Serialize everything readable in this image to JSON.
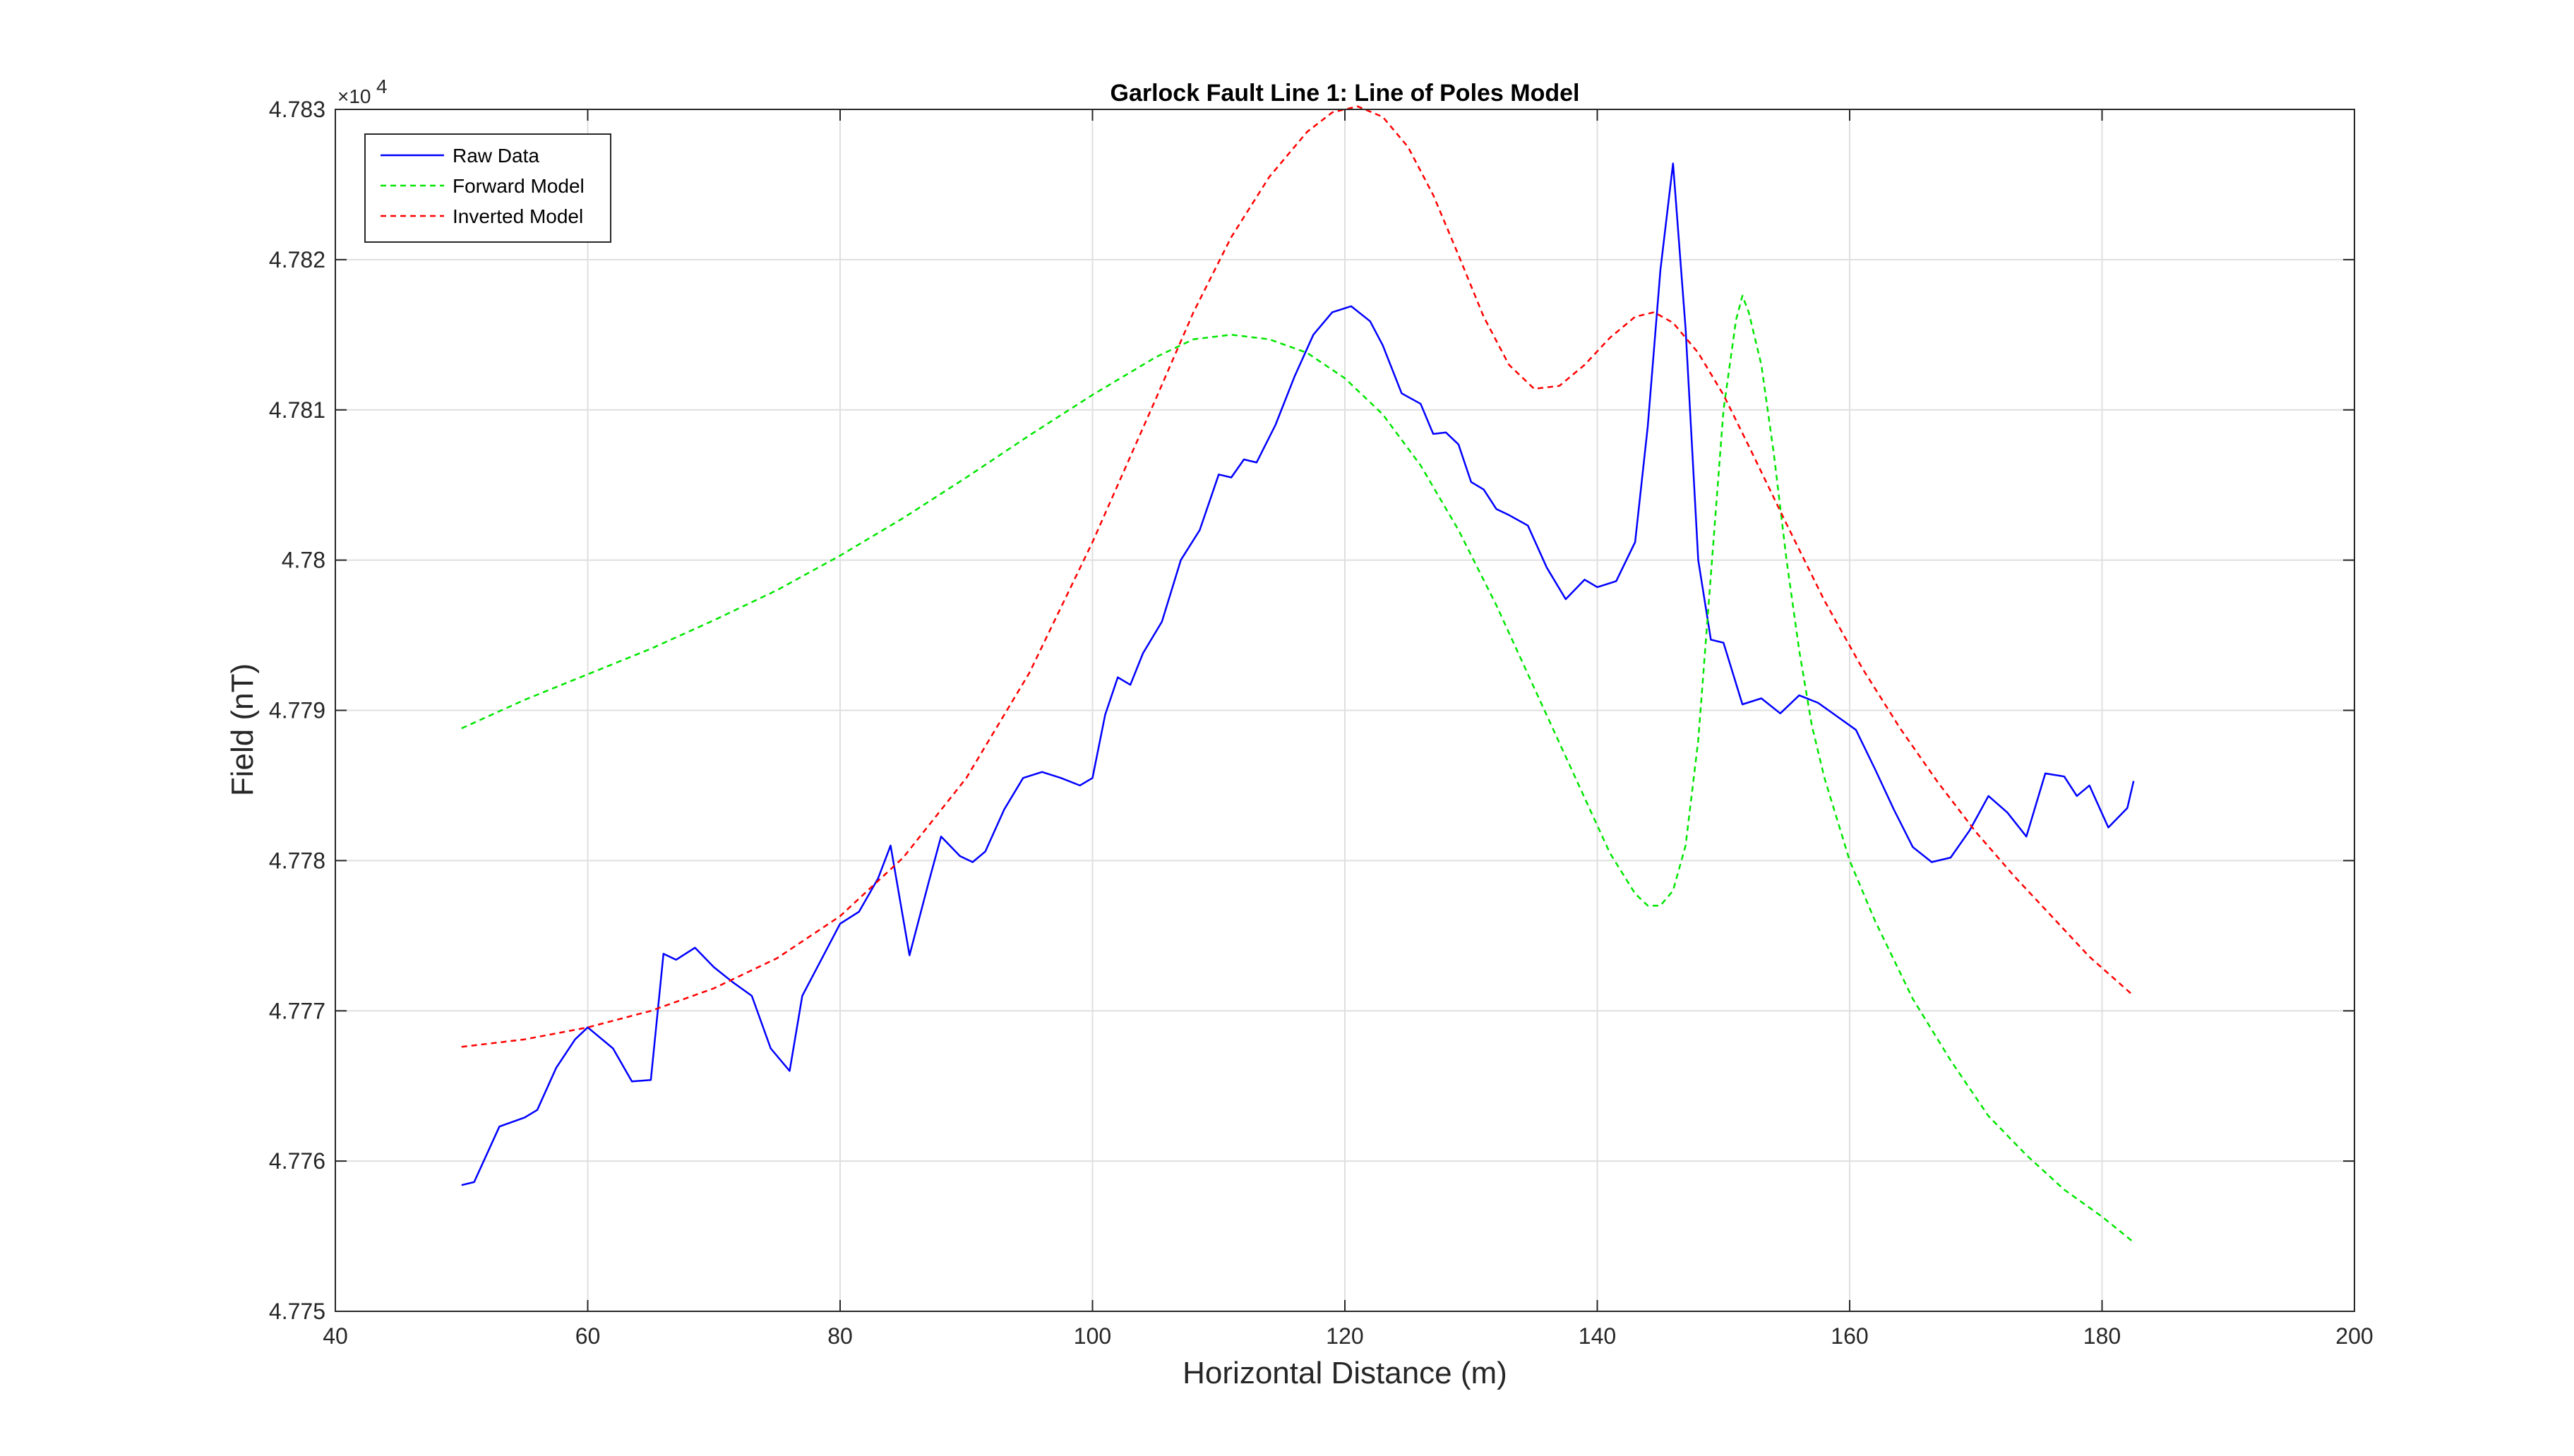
{
  "chart_data": {
    "type": "line",
    "title": "Garlock Fault Line 1: Line of Poles Model",
    "xlabel": "Horizontal Distance (m)",
    "ylabel": "Field (nT)",
    "xlim": [
      40,
      200
    ],
    "ylim": [
      47750,
      47830
    ],
    "y_exponent_label": "×10",
    "y_exponent_power": "4",
    "xticks": [
      40,
      60,
      80,
      100,
      120,
      140,
      160,
      180,
      200
    ],
    "xtick_labels": [
      "40",
      "60",
      "80",
      "100",
      "120",
      "140",
      "160",
      "180",
      "200"
    ],
    "yticks": [
      47750,
      47760,
      47770,
      47780,
      47790,
      47800,
      47810,
      47820,
      47830
    ],
    "ytick_labels": [
      "4.775",
      "4.776",
      "4.777",
      "4.778",
      "4.779",
      "4.78",
      "4.781",
      "4.782",
      "4.783"
    ],
    "grid": true,
    "legend_position": "top-left",
    "series": [
      {
        "name": "Raw Data",
        "color": "#0000ff",
        "dash": "solid",
        "x": [
          50,
          51,
          53,
          55,
          56,
          57.5,
          59,
          60,
          62,
          63.5,
          65,
          66,
          67,
          68.5,
          70,
          71.5,
          73,
          74.5,
          76,
          77,
          78.5,
          80,
          81.5,
          83,
          84,
          85.5,
          87,
          88,
          89.5,
          90.5,
          91.5,
          93,
          94.5,
          96,
          97.5,
          99,
          100,
          101,
          102,
          103,
          104,
          105.5,
          107,
          108.5,
          110,
          111,
          112,
          113,
          114.5,
          116,
          117.5,
          119,
          120.5,
          122,
          123,
          124.5,
          126,
          127,
          128,
          129,
          130,
          131,
          132,
          133,
          134.5,
          136,
          137.5,
          139,
          140,
          141.5,
          143,
          144,
          145,
          146,
          147,
          148,
          149,
          150,
          151.5,
          153,
          154.5,
          156,
          157.5,
          159,
          160.5,
          162,
          163.5,
          165,
          166.5,
          168,
          169.5,
          171,
          172.5,
          174,
          175.5,
          177,
          178,
          179,
          180.5,
          182,
          182.5
        ],
        "y": [
          47758.4,
          47758.6,
          47762.3,
          47762.9,
          47763.4,
          47766.2,
          47768.1,
          47768.9,
          47767.5,
          47765.3,
          47765.4,
          47773.8,
          47773.4,
          47774.2,
          47772.9,
          47771.9,
          47771.0,
          47767.5,
          47766.0,
          47771.0,
          47773.4,
          47775.8,
          47776.6,
          47778.8,
          47781.0,
          47773.7,
          47778.5,
          47781.6,
          47780.3,
          47779.9,
          47780.6,
          47783.4,
          47785.5,
          47785.9,
          47785.5,
          47785.0,
          47785.5,
          47789.7,
          47792.2,
          47791.7,
          47793.8,
          47795.9,
          47800.0,
          47802.0,
          47805.7,
          47805.5,
          47806.7,
          47806.5,
          47809.0,
          47812.2,
          47815.0,
          47816.5,
          47816.9,
          47815.9,
          47814.3,
          47811.1,
          47810.4,
          47808.4,
          47808.5,
          47807.7,
          47805.2,
          47804.7,
          47803.4,
          47803.0,
          47802.3,
          47799.5,
          47797.4,
          47798.7,
          47798.2,
          47798.6,
          47801.2,
          47808.9,
          47819.3,
          47826.4,
          47815.4,
          47800.0,
          47794.7,
          47794.5,
          47790.4,
          47790.8,
          47789.8,
          47791.0,
          47790.5,
          47789.6,
          47788.7,
          47786.1,
          47783.4,
          47780.9,
          47779.9,
          47780.2,
          47782.0,
          47784.3,
          47783.2,
          47781.6,
          47785.8,
          47785.6,
          47784.3,
          47785.0,
          47782.2,
          47783.5,
          47785.3
        ]
      },
      {
        "name": "Forward Model",
        "color": "#00e600",
        "dash": "8,6",
        "x": [
          50,
          55,
          60,
          65,
          70,
          75,
          80,
          85,
          90,
          95,
          100,
          105,
          108,
          111,
          114,
          117,
          120,
          123,
          126,
          129,
          132,
          135,
          138,
          141,
          143,
          144,
          145,
          146,
          147,
          148,
          149,
          150,
          151,
          151.5,
          152,
          153,
          154,
          155,
          156,
          157,
          158,
          160,
          162,
          165,
          168,
          171,
          174,
          177,
          180,
          182.5
        ],
        "y": [
          47788.8,
          47790.7,
          47792.4,
          47794.1,
          47796.0,
          47798.0,
          47800.3,
          47802.8,
          47805.5,
          47808.3,
          47811.0,
          47813.5,
          47814.7,
          47815.0,
          47814.7,
          47813.8,
          47812.1,
          47809.7,
          47806.3,
          47802.0,
          47797.0,
          47791.5,
          47786.0,
          47780.5,
          47777.8,
          47777.0,
          47777.0,
          47778.0,
          47781.0,
          47788.0,
          47799.0,
          47810.0,
          47816.0,
          47817.6,
          47816.5,
          47813.0,
          47807.0,
          47800.0,
          47794.0,
          47789.0,
          47785.5,
          47780.0,
          47776.0,
          47770.8,
          47766.7,
          47763.0,
          47760.4,
          47758.1,
          47756.3,
          47754.6
        ]
      },
      {
        "name": "Inverted Model",
        "color": "#ff0000",
        "dash": "8,6",
        "x": [
          50,
          55,
          60,
          65,
          70,
          75,
          80,
          85,
          90,
          95,
          100,
          105,
          108,
          111,
          114,
          117,
          119,
          121,
          123,
          125,
          127,
          129,
          131,
          133,
          135,
          137,
          139,
          141,
          143,
          144.5,
          146,
          148,
          150,
          152,
          155,
          158,
          161,
          164,
          167,
          170,
          173,
          176,
          179,
          182.5
        ],
        "y": [
          47767.6,
          47768.1,
          47768.9,
          47770.0,
          47771.5,
          47773.5,
          47776.3,
          47780.2,
          47785.5,
          47792.5,
          47801.2,
          47810.7,
          47816.5,
          47821.5,
          47825.5,
          47828.5,
          47829.8,
          47830.2,
          47829.5,
          47827.5,
          47824.3,
          47820.3,
          47816.2,
          47813.0,
          47811.4,
          47811.6,
          47813.0,
          47814.8,
          47816.2,
          47816.5,
          47815.8,
          47813.8,
          47811.0,
          47807.6,
          47802.4,
          47797.3,
          47792.8,
          47788.8,
          47785.2,
          47781.9,
          47779.0,
          47776.3,
          47773.6,
          47771.0
        ]
      }
    ]
  }
}
